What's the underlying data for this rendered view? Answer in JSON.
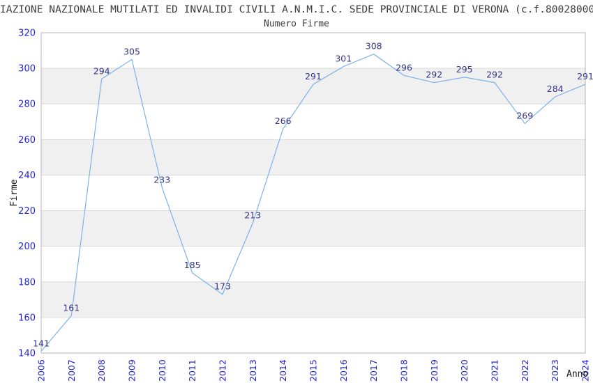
{
  "header": {
    "title": "IAZIONE NAZIONALE MUTILATI ED INVALIDI CIVILI A.N.M.I.C. SEDE PROVINCIALE DI VERONA (c.f.80028000"
  },
  "chart_data": {
    "type": "line",
    "title": "Numero Firme",
    "xlabel": "Anno",
    "ylabel": "Firme",
    "x": [
      "2006",
      "2007",
      "2008",
      "2009",
      "2010",
      "2011",
      "2012",
      "2013",
      "2014",
      "2015",
      "2016",
      "2017",
      "2018",
      "2019",
      "2020",
      "2021",
      "2022",
      "2023",
      "2024"
    ],
    "values": [
      141,
      161,
      294,
      305,
      233,
      185,
      173,
      213,
      266,
      291,
      301,
      308,
      296,
      292,
      295,
      292,
      269,
      284,
      291
    ],
    "ylim": [
      140,
      320
    ],
    "ytick_step": 20,
    "yticks": [
      140,
      160,
      180,
      200,
      220,
      240,
      260,
      280,
      300,
      320
    ],
    "grid": true,
    "legend": "none",
    "alternating_bands": true,
    "colors": {
      "line": "#7db1ea",
      "tick_label": "#2323d3",
      "data_label": "#333387",
      "band": "#f0f0f0",
      "grid": "#dcdcdc",
      "border": "#b5b5b5",
      "title": "#3d3d3d",
      "axis_name": "#161616",
      "background": "#ffffff"
    }
  }
}
